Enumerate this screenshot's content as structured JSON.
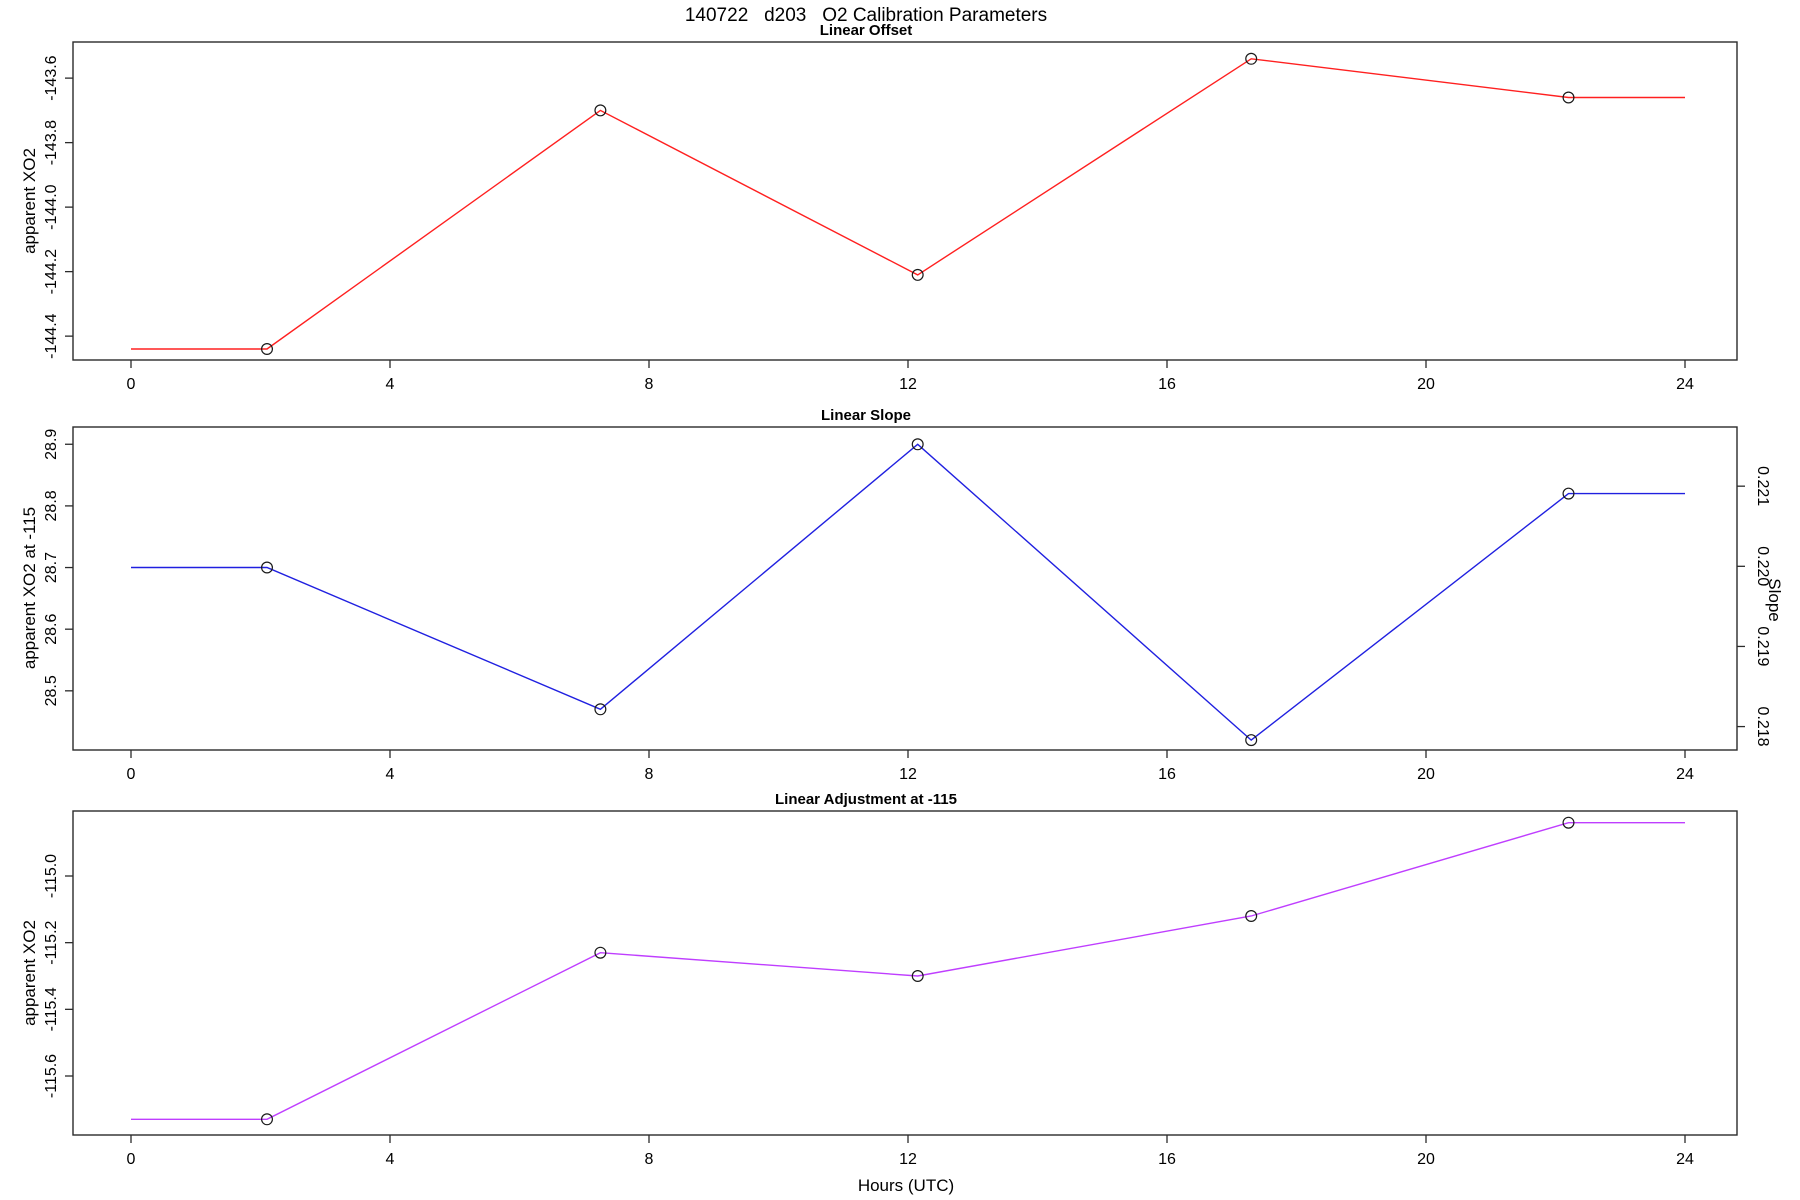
{
  "title": "140722   d203   O2 Calibration Parameters",
  "x_axis": {
    "label": "Hours (UTC)",
    "ticks": [
      0,
      4,
      8,
      12,
      16,
      20,
      24
    ],
    "tick_labels": [
      "0",
      "4",
      "8",
      "12",
      "16",
      "20",
      "24"
    ]
  },
  "marker_hours": [
    2.1,
    7.25,
    12.15,
    17.3,
    22.2
  ],
  "chart_data": [
    {
      "type": "line",
      "title": "Linear Offset",
      "ylabel": "apparent XO2",
      "color": "#ff2020",
      "x": [
        2.1,
        7.25,
        12.15,
        17.3,
        22.2
      ],
      "values": [
        -144.44,
        -143.7,
        -144.21,
        -143.54,
        -143.66
      ],
      "line_extends_flat_to_x": [
        0,
        24
      ],
      "ytick_values": [
        -143.6,
        -143.8,
        -144.0,
        -144.2,
        -144.4
      ],
      "ytick_labels": [
        "-143.6",
        "-143.8",
        "-144.0",
        "-144.2",
        "-144.4"
      ],
      "ylim": [
        -144.474,
        -143.488
      ],
      "grid": false,
      "legend": "none"
    },
    {
      "type": "line",
      "title": "Linear Slope",
      "ylabel": "apparent XO2 at -115",
      "color": "#2020e0",
      "x": [
        2.1,
        7.25,
        12.15,
        17.3,
        22.2
      ],
      "values": [
        28.7,
        28.47,
        28.9,
        28.42,
        28.82
      ],
      "line_extends_flat_to_x": [
        0,
        24
      ],
      "ytick_values": [
        28.5,
        28.6,
        28.7,
        28.8,
        28.9
      ],
      "ytick_labels": [
        "28.5",
        "28.6",
        "28.7",
        "28.8",
        "28.9"
      ],
      "ylim": [
        28.404,
        28.928
      ],
      "grid": false,
      "legend": "none",
      "right_axis": {
        "label": "Slope",
        "tick_labels": [
          "0.218",
          "0.219",
          "0.220",
          "0.221"
        ],
        "tick_values_in_left_scale": [
          28.442,
          28.572,
          28.702,
          28.832
        ],
        "slope_values_at_points": [
          0.22,
          0.2182,
          0.2215,
          0.2178,
          0.2209
        ]
      }
    },
    {
      "type": "line",
      "title": "Linear Adjustment at -115",
      "ylabel": "apparent XO2",
      "color": "#bf3eff",
      "x": [
        2.1,
        7.25,
        12.15,
        17.3,
        22.2
      ],
      "values": [
        -115.73,
        -115.23,
        -115.3,
        -115.12,
        -114.84
      ],
      "line_extends_flat_to_x": [
        0,
        24
      ],
      "ytick_values": [
        -115.0,
        -115.2,
        -115.4,
        -115.6
      ],
      "ytick_labels": [
        "-115.0",
        "-115.2",
        "-115.4",
        "-115.6"
      ],
      "ylim": [
        -115.777,
        -114.805
      ],
      "grid": false,
      "legend": "none"
    }
  ]
}
